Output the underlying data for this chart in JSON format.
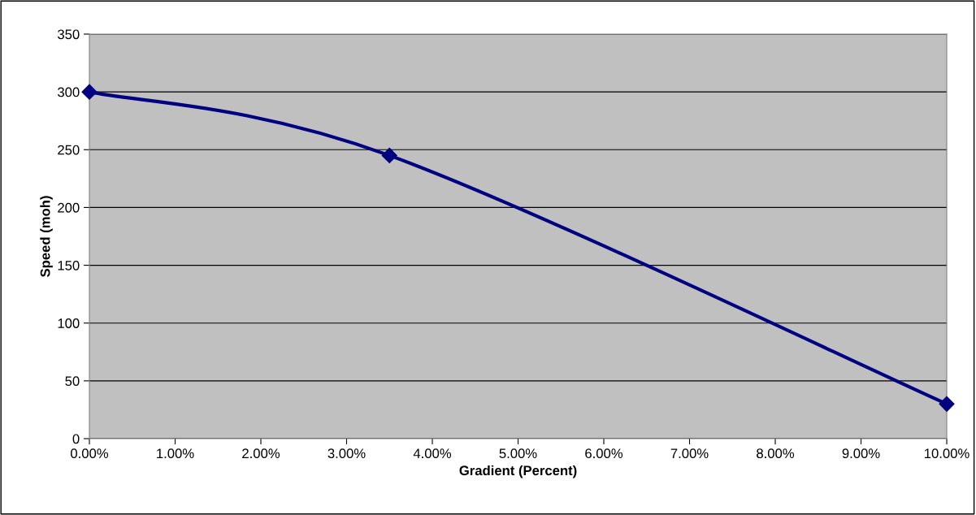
{
  "chart_data": {
    "type": "line",
    "xlabel": "Gradient (Percent)",
    "ylabel": "Speed (moh)",
    "x": [
      0,
      3.5,
      10
    ],
    "series": [
      {
        "color": "#000080",
        "values": [
          300,
          245,
          30
        ]
      }
    ],
    "marker": "diamond",
    "line_style": "solid",
    "grid": "y",
    "legend": false,
    "xlim": [
      0,
      10
    ],
    "ylim": [
      0,
      350
    ],
    "xticks": [
      {
        "value": 0,
        "label": "0.00%"
      },
      {
        "value": 1,
        "label": "1.00%"
      },
      {
        "value": 2,
        "label": "2.00%"
      },
      {
        "value": 3,
        "label": "3.00%"
      },
      {
        "value": 4,
        "label": "4.00%"
      },
      {
        "value": 5,
        "label": "5.00%"
      },
      {
        "value": 6,
        "label": "6.00%"
      },
      {
        "value": 7,
        "label": "7.00%"
      },
      {
        "value": 8,
        "label": "8.00%"
      },
      {
        "value": 9,
        "label": "9.00%"
      },
      {
        "value": 10,
        "label": "10.00%"
      }
    ],
    "yticks": [
      0,
      50,
      100,
      150,
      200,
      250,
      300,
      350
    ]
  }
}
